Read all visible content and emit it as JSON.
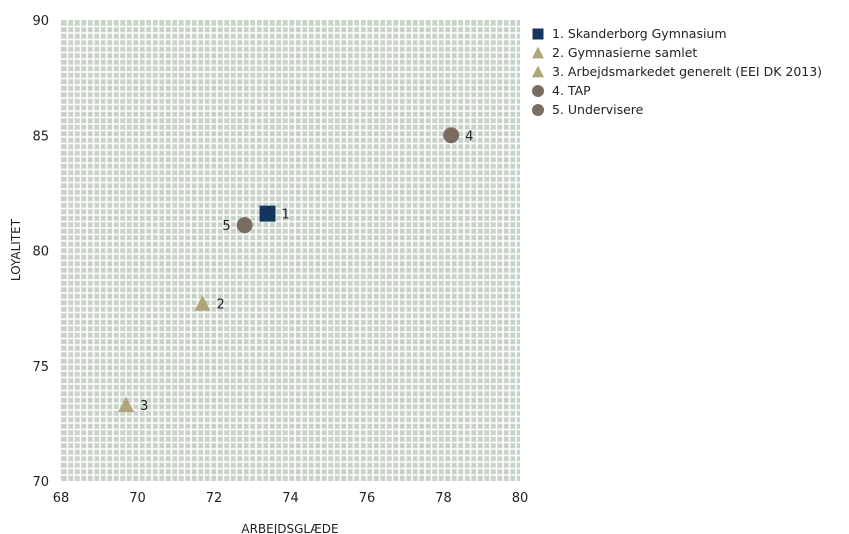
{
  "chart_data": {
    "type": "scatter",
    "xlabel": "ARBEJDSGLÆDE",
    "ylabel": "LOYALITET",
    "xlim": [
      68,
      80
    ],
    "ylim": [
      70,
      90
    ],
    "xticks": [
      "68",
      "70",
      "72",
      "74",
      "76",
      "78",
      "80"
    ],
    "yticks": [
      "70",
      "75",
      "80",
      "85",
      "90"
    ],
    "grid": true,
    "legend_position": "right",
    "series": [
      {
        "name": "1. Skanderborg Gymnasium",
        "label": "1",
        "x": 73.4,
        "y": 81.6,
        "marker": "square",
        "color": "#13355f",
        "label_side": "right"
      },
      {
        "name": "2. Gymnasierne samlet",
        "label": "2",
        "x": 71.7,
        "y": 77.7,
        "marker": "triangle",
        "color": "#b0a57a",
        "label_side": "right"
      },
      {
        "name": "3. Arbejdsmarkedet generelt (EEI DK 2013)",
        "label": "3",
        "x": 69.7,
        "y": 73.3,
        "marker": "triangle",
        "color": "#b0a57a",
        "label_side": "right"
      },
      {
        "name": "4. TAP",
        "label": "4",
        "x": 78.2,
        "y": 85.0,
        "marker": "circle",
        "color": "#7a6c60",
        "label_side": "right"
      },
      {
        "name": "5. Undervisere",
        "label": "5",
        "x": 72.8,
        "y": 81.1,
        "marker": "circle",
        "color": "#7a6c60",
        "label_side": "left"
      }
    ]
  },
  "colors": {
    "plot_background": "#c9d4c9",
    "grid_line": "#ffffff"
  }
}
